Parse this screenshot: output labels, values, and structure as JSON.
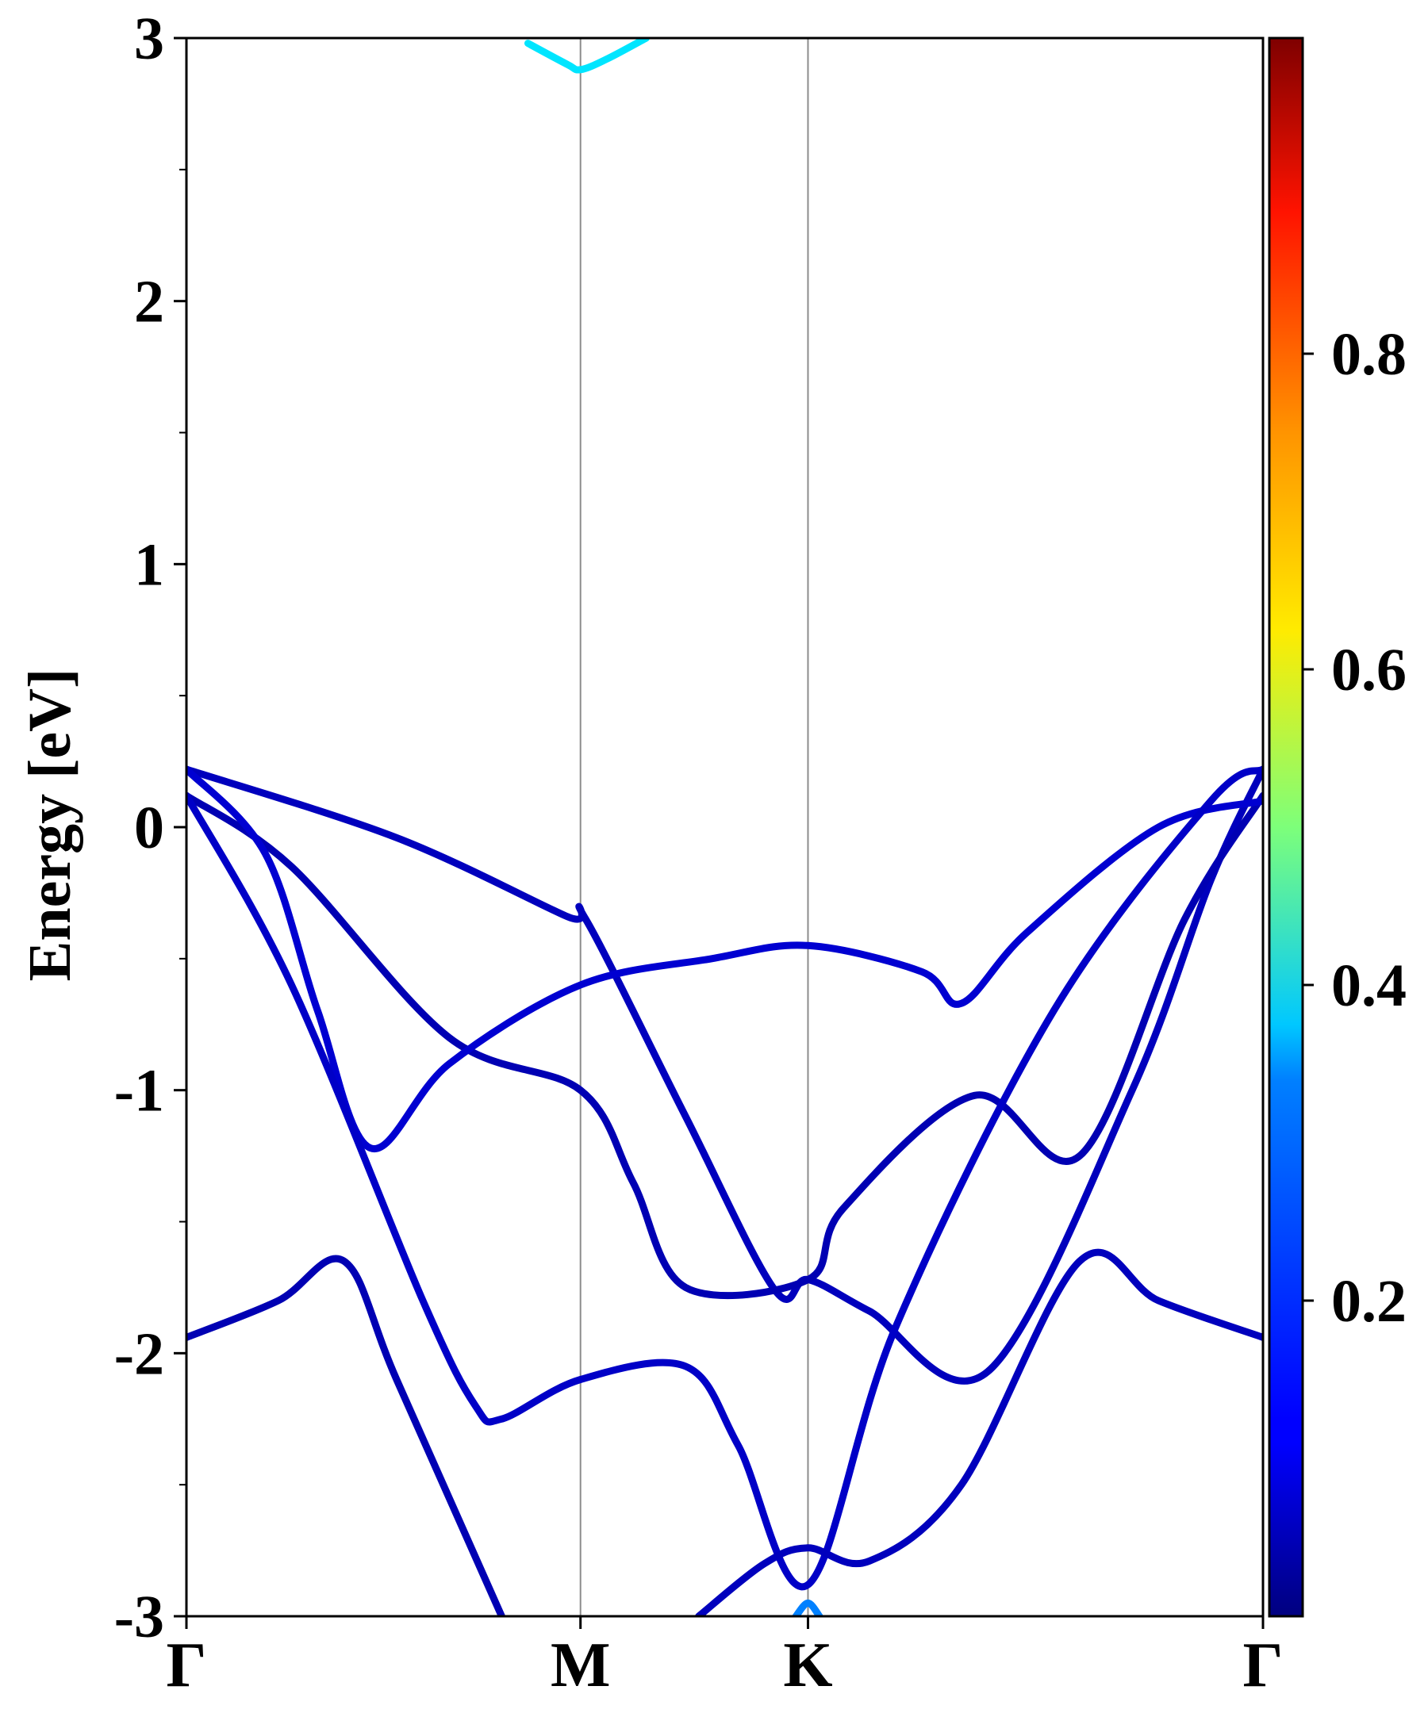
{
  "chart_data": {
    "type": "line",
    "title": "",
    "ylabel": "Energy [eV]",
    "xlabel": "",
    "ylim": [
      -3,
      3
    ],
    "yticks": [
      "3",
      "2",
      "1",
      "0",
      "-1",
      "-2",
      "-3"
    ],
    "ytick_values": [
      3,
      2,
      1,
      0,
      -1,
      -2,
      -3
    ],
    "high_symmetry_points": [
      {
        "label": "Γ",
        "k": 0.0
      },
      {
        "label": "M",
        "k": 1.5
      },
      {
        "label": "K",
        "k": 2.366
      },
      {
        "label": "Γ",
        "k": 4.098
      }
    ],
    "grid": false,
    "legend": "none",
    "colorbar": {
      "range": [
        0.0,
        1.0
      ],
      "colormap": "jet",
      "tick_labels": [
        "0.2",
        "0.4",
        "0.6",
        "0.8"
      ],
      "tick_values": [
        0.2,
        0.4,
        0.6,
        0.8
      ]
    },
    "bands": [
      {
        "weight": 0.06,
        "points": [
          [
            0,
            0.22
          ],
          [
            0.8,
            -0.04
          ],
          [
            1.45,
            -0.34
          ],
          [
            1.52,
            -0.35
          ],
          [
            1.9,
            -1.1
          ],
          [
            2.24,
            -1.76
          ],
          [
            2.366,
            -1.72
          ],
          [
            2.6,
            -1.84
          ],
          [
            3.05,
            -2.07
          ],
          [
            3.6,
            -1.0
          ],
          [
            3.9,
            -0.2
          ],
          [
            4.098,
            0.22
          ]
        ]
      },
      {
        "weight": 0.05,
        "points": [
          [
            0,
            0.12
          ],
          [
            0.4,
            -0.15
          ],
          [
            1.0,
            -0.8
          ],
          [
            1.5,
            -1.0
          ],
          [
            1.7,
            -1.35
          ],
          [
            1.9,
            -1.75
          ],
          [
            2.366,
            -1.72
          ],
          [
            2.5,
            -1.45
          ],
          [
            3.0,
            -1.02
          ],
          [
            3.4,
            -1.25
          ],
          [
            3.8,
            -0.35
          ],
          [
            4.098,
            0.12
          ]
        ]
      },
      {
        "weight": 0.08,
        "points": [
          [
            0,
            0.22
          ],
          [
            0.3,
            -0.1
          ],
          [
            0.5,
            -0.7
          ],
          [
            0.7,
            -1.22
          ],
          [
            1.0,
            -0.9
          ],
          [
            1.5,
            -0.6
          ],
          [
            2.0,
            -0.5
          ],
          [
            2.366,
            -0.45
          ],
          [
            2.8,
            -0.55
          ],
          [
            2.95,
            -0.67
          ],
          [
            3.2,
            -0.4
          ],
          [
            3.7,
            0.0
          ],
          [
            4.098,
            0.1
          ]
        ]
      },
      {
        "weight": 0.07,
        "points": [
          [
            0,
            0.12
          ],
          [
            0.4,
            -0.6
          ],
          [
            0.9,
            -1.8
          ],
          [
            1.1,
            -2.2
          ],
          [
            1.2,
            -2.25
          ],
          [
            1.5,
            -2.1
          ],
          [
            1.9,
            -2.05
          ],
          [
            2.1,
            -2.35
          ],
          [
            2.366,
            -2.88
          ],
          [
            2.7,
            -1.9
          ],
          [
            3.3,
            -0.7
          ],
          [
            3.9,
            0.1
          ],
          [
            4.098,
            0.22
          ]
        ]
      },
      {
        "weight": 0.05,
        "points": [
          [
            0,
            -1.94
          ],
          [
            0.35,
            -1.8
          ],
          [
            0.6,
            -1.65
          ],
          [
            0.8,
            -2.1
          ],
          [
            1.2,
            -3.0
          ]
        ]
      },
      {
        "weight": 0.06,
        "points": [
          [
            1.95,
            -3.0
          ],
          [
            2.2,
            -2.8
          ],
          [
            2.366,
            -2.74
          ],
          [
            2.6,
            -2.79
          ],
          [
            2.95,
            -2.5
          ],
          [
            3.4,
            -1.65
          ],
          [
            3.7,
            -1.8
          ],
          [
            4.098,
            -1.94
          ]
        ]
      },
      {
        "weight": 0.35,
        "points": [
          [
            1.3,
            2.98
          ],
          [
            1.45,
            2.9
          ],
          [
            1.5,
            2.88
          ],
          [
            1.6,
            2.92
          ],
          [
            1.75,
            3.0
          ]
        ]
      },
      {
        "weight": 0.25,
        "points": [
          [
            2.32,
            -3.0
          ],
          [
            2.366,
            -2.95
          ],
          [
            2.41,
            -3.0
          ]
        ]
      }
    ]
  }
}
